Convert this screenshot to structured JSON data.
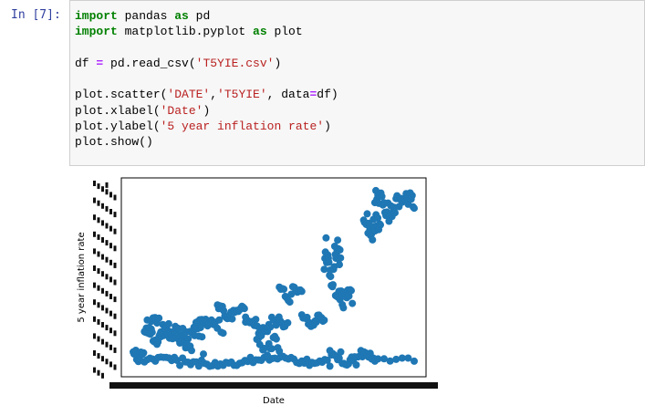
{
  "cell": {
    "prompt": "In [7]:",
    "code_lines": [
      [
        {
          "t": "import",
          "c": "kw"
        },
        {
          "t": " pandas "
        },
        {
          "t": "as",
          "c": "kw"
        },
        {
          "t": " pd"
        }
      ],
      [
        {
          "t": "import",
          "c": "kw"
        },
        {
          "t": " matplotlib.pyplot "
        },
        {
          "t": "as",
          "c": "kw"
        },
        {
          "t": " plot"
        }
      ],
      [],
      [
        {
          "t": "df "
        },
        {
          "t": "=",
          "c": "op"
        },
        {
          "t": " pd.read_csv("
        },
        {
          "t": "'T5YIE.csv'",
          "c": "str"
        },
        {
          "t": ")"
        }
      ],
      [],
      [
        {
          "t": "plot.scatter("
        },
        {
          "t": "'DATE'",
          "c": "str"
        },
        {
          "t": ","
        },
        {
          "t": "'T5YIE'",
          "c": "str"
        },
        {
          "t": ", data"
        },
        {
          "t": "=",
          "c": "op"
        },
        {
          "t": "df)"
        }
      ],
      [
        {
          "t": "plot.xlabel("
        },
        {
          "t": "'Date'",
          "c": "str"
        },
        {
          "t": ")"
        }
      ],
      [
        {
          "t": "plot.ylabel("
        },
        {
          "t": "'5 year inflation rate'",
          "c": "str"
        },
        {
          "t": ")"
        }
      ],
      [
        {
          "t": "plot.show()"
        }
      ]
    ]
  },
  "chart_data": {
    "type": "scatter",
    "xlabel": "Date",
    "ylabel": "5 year inflation rate",
    "x_range": [
      0,
      1
    ],
    "y_range": [
      0,
      1
    ],
    "marker_color": "#1f77b4",
    "segments": [
      {
        "x0": 0.0,
        "x1": 0.04,
        "y0": 0.02,
        "y1": 0.1,
        "n": 14
      },
      {
        "x0": 0.04,
        "x1": 0.14,
        "y0": 0.12,
        "y1": 0.22,
        "n": 30
      },
      {
        "x0": 0.05,
        "x1": 0.32,
        "y0": 0.15,
        "y1": 0.28,
        "n": 40
      },
      {
        "x0": 0.3,
        "x1": 0.4,
        "y0": 0.25,
        "y1": 0.35,
        "n": 24
      },
      {
        "x0": 0.4,
        "x1": 0.55,
        "y0": 0.18,
        "y1": 0.28,
        "n": 30
      },
      {
        "x0": 0.52,
        "x1": 0.6,
        "y0": 0.35,
        "y1": 0.46,
        "n": 16
      },
      {
        "x0": 0.6,
        "x1": 0.68,
        "y0": 0.22,
        "y1": 0.3,
        "n": 18
      },
      {
        "x0": 0.68,
        "x1": 0.74,
        "y0": 0.4,
        "y1": 0.72,
        "n": 30
      },
      {
        "x0": 0.72,
        "x1": 0.78,
        "y0": 0.3,
        "y1": 0.45,
        "n": 16
      },
      {
        "x0": 0.82,
        "x1": 0.88,
        "y0": 0.7,
        "y1": 0.85,
        "n": 20
      },
      {
        "x0": 0.86,
        "x1": 1.0,
        "y0": 0.8,
        "y1": 1.0,
        "n": 40
      },
      {
        "x0": 0.05,
        "x1": 0.62,
        "y0": 0.0,
        "y1": 0.06,
        "n": 60
      },
      {
        "x0": 0.7,
        "x1": 0.86,
        "y0": 0.0,
        "y1": 0.1,
        "n": 30
      },
      {
        "x0": 0.85,
        "x1": 1.0,
        "y0": 0.03,
        "y1": 0.05,
        "n": 8
      },
      {
        "x0": 0.15,
        "x1": 0.25,
        "y0": 0.05,
        "y1": 0.25,
        "n": 20
      },
      {
        "x0": 0.44,
        "x1": 0.52,
        "y0": 0.04,
        "y1": 0.18,
        "n": 16
      },
      {
        "x0": 0.6,
        "x1": 0.7,
        "y0": 0.0,
        "y1": 0.05,
        "n": 12
      }
    ]
  }
}
